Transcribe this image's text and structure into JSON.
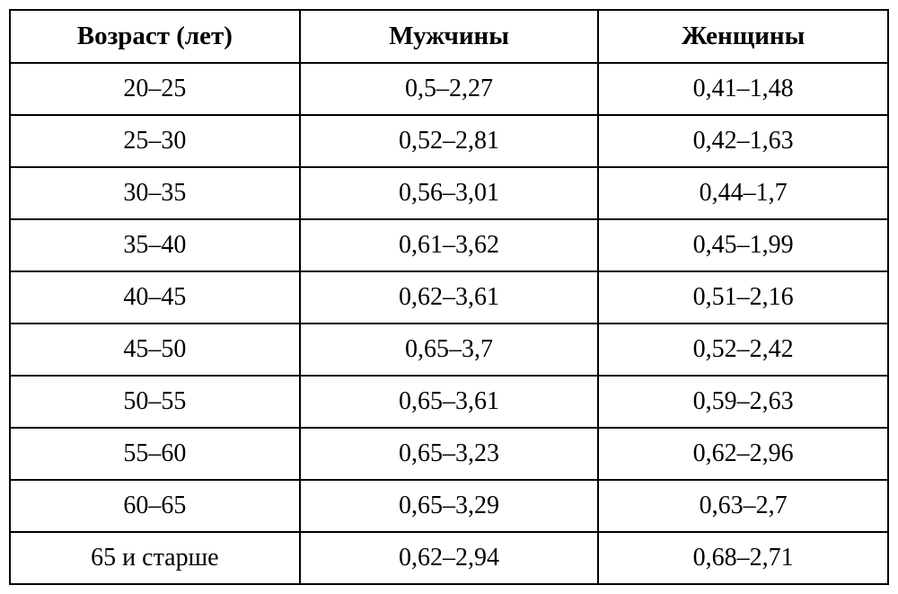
{
  "table": {
    "type": "table",
    "background_color": "#ffffff",
    "border_color": "#000000",
    "border_width": 2,
    "font_family": "Georgia, 'Times New Roman', serif",
    "header_fontsize": 29,
    "header_fontweight": "bold",
    "cell_fontsize": 28,
    "cell_fontweight": "normal",
    "text_color": "#000000",
    "text_align": "center",
    "columns": [
      {
        "label": "Возраст (лет)",
        "width_pct": 33
      },
      {
        "label": "Мужчины",
        "width_pct": 34
      },
      {
        "label": "Женщины",
        "width_pct": 33
      }
    ],
    "rows": [
      [
        "20–25",
        "0,5–2,27",
        "0,41–1,48"
      ],
      [
        "25–30",
        "0,52–2,81",
        "0,42–1,63"
      ],
      [
        "30–35",
        "0,56–3,01",
        "0,44–1,7"
      ],
      [
        "35–40",
        "0,61–3,62",
        "0,45–1,99"
      ],
      [
        "40–45",
        "0,62–3,61",
        "0,51–2,16"
      ],
      [
        "45–50",
        "0,65–3,7",
        "0,52–2,42"
      ],
      [
        "50–55",
        "0,65–3,61",
        "0,59–2,63"
      ],
      [
        "55–60",
        "0,65–3,23",
        "0,62–2,96"
      ],
      [
        "60–65",
        "0,65–3,29",
        "0,63–2,7"
      ],
      [
        "65 и старше",
        "0,62–2,94",
        "0,68–2,71"
      ]
    ]
  }
}
